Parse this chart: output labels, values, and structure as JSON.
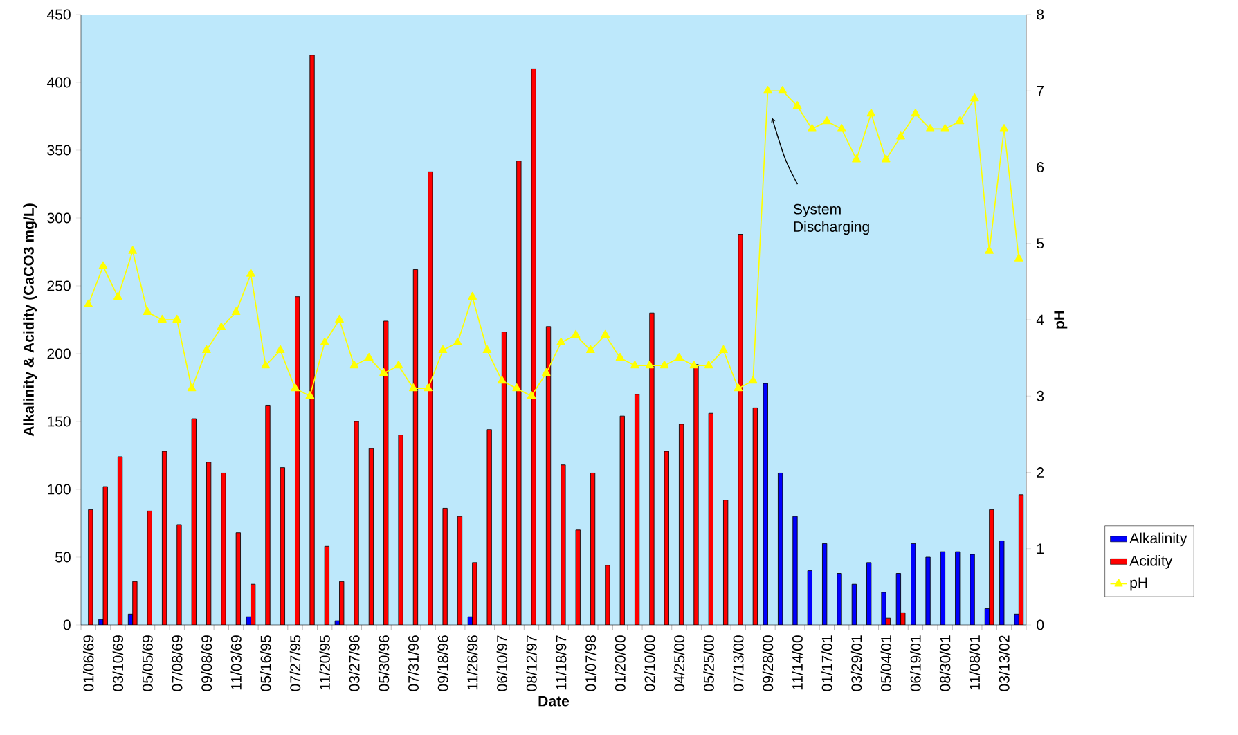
{
  "chart_data": {
    "type": "bar",
    "xlabel": "Date",
    "ylabel": "Alkalinity & Acidity (CaCO3 mg/L)",
    "y2label": "pH",
    "categories": [
      "01/06/69",
      null,
      "03/10/69",
      null,
      "05/05/69",
      null,
      "07/08/69",
      null,
      "09/08/69",
      null,
      "11/03/69",
      null,
      "05/16/95",
      null,
      "07/27/95",
      null,
      "11/20/95",
      null,
      "03/27/96",
      null,
      "05/30/96",
      null,
      "07/31/96",
      null,
      "09/18/96",
      null,
      "11/26/96",
      null,
      "06/10/97",
      null,
      "08/12/97",
      null,
      "11/18/97",
      null,
      "01/07/98",
      null,
      "01/20/00",
      null,
      "02/10/00",
      null,
      "04/25/00",
      null,
      "05/25/00",
      null,
      "07/13/00",
      null,
      "09/28/00",
      null,
      "11/14/00",
      null,
      "01/17/01",
      null,
      "03/29/01",
      null,
      "05/04/01",
      null,
      "06/19/01",
      null,
      "08/30/01",
      null,
      "11/08/01",
      null,
      "03/13/02",
      null
    ],
    "series": [
      {
        "name": "Alkalinity",
        "color": "#0000ff",
        "values": [
          null,
          4,
          null,
          8,
          null,
          null,
          null,
          null,
          null,
          null,
          null,
          6,
          null,
          null,
          null,
          null,
          null,
          3,
          null,
          null,
          null,
          null,
          null,
          null,
          null,
          null,
          6,
          null,
          null,
          null,
          null,
          null,
          null,
          null,
          null,
          null,
          null,
          null,
          null,
          null,
          null,
          null,
          null,
          null,
          null,
          null,
          178,
          112,
          80,
          40,
          60,
          38,
          30,
          46,
          24,
          38,
          60,
          50,
          54,
          54,
          52,
          12,
          62,
          8
        ]
      },
      {
        "name": "Acidity",
        "color": "#ff0000",
        "values": [
          85,
          102,
          124,
          32,
          84,
          128,
          74,
          152,
          120,
          112,
          68,
          30,
          162,
          116,
          242,
          420,
          58,
          32,
          150,
          130,
          224,
          140,
          262,
          334,
          86,
          80,
          46,
          144,
          216,
          342,
          410,
          220,
          118,
          70,
          112,
          44,
          154,
          170,
          230,
          128,
          148,
          192,
          156,
          92,
          288,
          160,
          null,
          null,
          null,
          null,
          null,
          null,
          null,
          null,
          5,
          9,
          null,
          null,
          null,
          null,
          null,
          85,
          null,
          96
        ]
      },
      {
        "name": "pH",
        "type": "line",
        "axis": "y2",
        "color": "#ffff00",
        "marker": "triangle",
        "values": [
          4.2,
          4.7,
          4.3,
          4.9,
          4.1,
          4.0,
          4.0,
          3.1,
          3.6,
          3.9,
          4.1,
          4.6,
          3.4,
          3.6,
          3.1,
          3.0,
          3.7,
          4.0,
          3.4,
          3.5,
          3.3,
          3.4,
          3.1,
          3.1,
          3.6,
          3.7,
          4.3,
          3.6,
          3.2,
          3.1,
          3.0,
          3.3,
          3.7,
          3.8,
          3.6,
          3.8,
          3.5,
          3.4,
          3.4,
          3.4,
          3.5,
          3.4,
          3.4,
          3.6,
          3.1,
          3.2,
          7.0,
          7.0,
          6.8,
          6.5,
          6.6,
          6.5,
          6.1,
          6.7,
          6.1,
          6.4,
          6.7,
          6.5,
          6.5,
          6.6,
          6.9,
          4.9,
          6.5,
          4.8
        ]
      }
    ],
    "ylim": [
      0,
      450
    ],
    "yticks": [
      0,
      50,
      100,
      150,
      200,
      250,
      300,
      350,
      400,
      450
    ],
    "y2lim": [
      0,
      8
    ],
    "y2ticks": [
      0,
      1,
      2,
      3,
      4,
      5,
      6,
      7,
      8
    ],
    "legend": "right",
    "annotations": [
      "System Discharging"
    ]
  }
}
